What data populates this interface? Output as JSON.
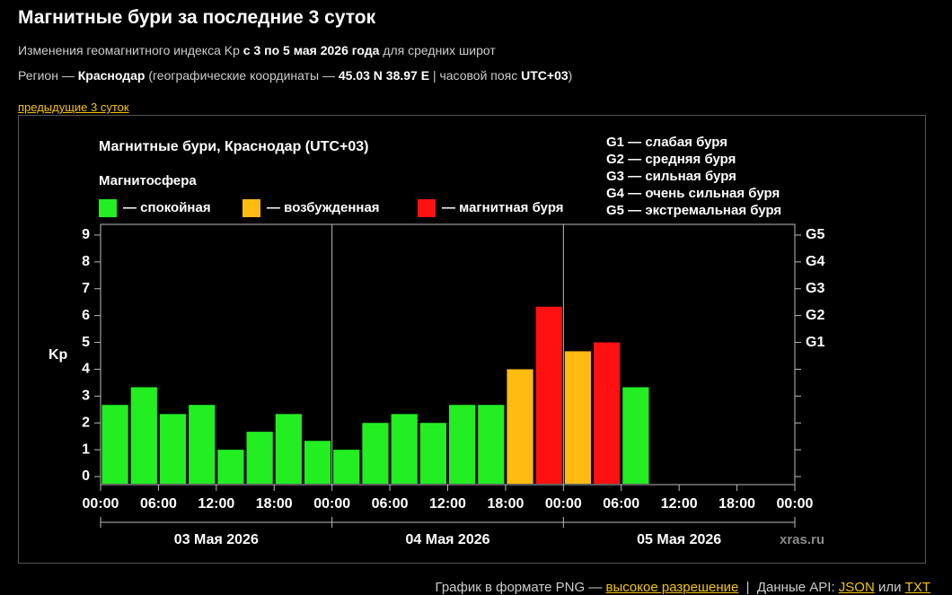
{
  "header": {
    "title": "Магнитные бури за последние 3 суток",
    "line1": [
      "Изменения геомагнитного индекса Kp ",
      "с 3 по 5 мая 2026 года",
      " для средних широт"
    ],
    "line2": [
      "Регион — ",
      "Краснодар",
      " (географические координаты — ",
      "45.03 N 38.97 E",
      " | часовой пояс ",
      "UTC+03",
      ")"
    ],
    "link": "предыдущие 3 суток"
  },
  "chart_data": {
    "type": "bar",
    "title": "Магнитные бури, Краснодар (UTC+03)",
    "legend_title": "Магнитосфера",
    "ylabel": "Kp",
    "watermark": "xras.ru",
    "storm_levels": [
      "G1 — слабая буря",
      "G2 — средняя буря",
      "G3 — сильная буря",
      "G4 — очень сильная буря",
      "G5 — экстремальная буря"
    ],
    "x": [
      0,
      3,
      6,
      9,
      12,
      15,
      18,
      21,
      24,
      27,
      30,
      33,
      36,
      39,
      42,
      45,
      48,
      51,
      54,
      57,
      60,
      63,
      66,
      69
    ],
    "xlim": [
      0,
      72
    ],
    "xticks": [
      {
        "value": 0,
        "label": "00:00"
      },
      {
        "value": 6,
        "label": "06:00"
      },
      {
        "value": 12,
        "label": "12:00"
      },
      {
        "value": 18,
        "label": "18:00"
      },
      {
        "value": 24,
        "label": "00:00"
      },
      {
        "value": 30,
        "label": "06:00"
      },
      {
        "value": 36,
        "label": "12:00"
      },
      {
        "value": 42,
        "label": "18:00"
      },
      {
        "value": 48,
        "label": "00:00"
      },
      {
        "value": 54,
        "label": "06:00"
      },
      {
        "value": 60,
        "label": "12:00"
      },
      {
        "value": 66,
        "label": "18:00"
      },
      {
        "value": 72,
        "label": "00:00"
      }
    ],
    "days": [
      "03 Мая 2026",
      "04 Мая 2026",
      "05 Мая 2026"
    ],
    "series": [
      {
        "name": "— спокойная",
        "color": "#22ee22",
        "values": [
          2.67,
          3.33,
          2.33,
          2.67,
          1,
          1.67,
          2.33,
          1.33,
          1,
          2,
          2.33,
          2,
          2.67,
          2.67,
          null,
          null,
          null,
          null,
          3.33,
          null,
          null,
          null,
          null,
          null
        ]
      },
      {
        "name": "— возбужденная",
        "color": "#ffbb11",
        "values": [
          null,
          null,
          null,
          null,
          null,
          null,
          null,
          null,
          null,
          null,
          null,
          null,
          null,
          null,
          4,
          null,
          4.67,
          null,
          null,
          null,
          null,
          null,
          null,
          null
        ]
      },
      {
        "name": "— магнитная буря",
        "color": "#ff1111",
        "values": [
          null,
          null,
          null,
          null,
          null,
          null,
          null,
          null,
          null,
          null,
          null,
          null,
          null,
          null,
          null,
          6.33,
          null,
          5,
          null,
          null,
          null,
          null,
          null,
          null
        ]
      }
    ],
    "ylim": [
      -0.3,
      9.4
    ],
    "yticks": [
      0,
      1,
      2,
      3,
      4,
      5,
      6,
      7,
      8,
      9
    ],
    "y2ticks": [
      {
        "value": 5,
        "label": "G1"
      },
      {
        "value": 6,
        "label": "G2"
      },
      {
        "value": 7,
        "label": "G3"
      },
      {
        "value": 8,
        "label": "G4"
      },
      {
        "value": 9,
        "label": "G5"
      }
    ],
    "grid": false
  },
  "footer": {
    "parts": [
      "График в формате PNG — ",
      "высокое разрешение",
      "  |  Данные API: ",
      "JSON",
      " или ",
      "TXT"
    ]
  }
}
